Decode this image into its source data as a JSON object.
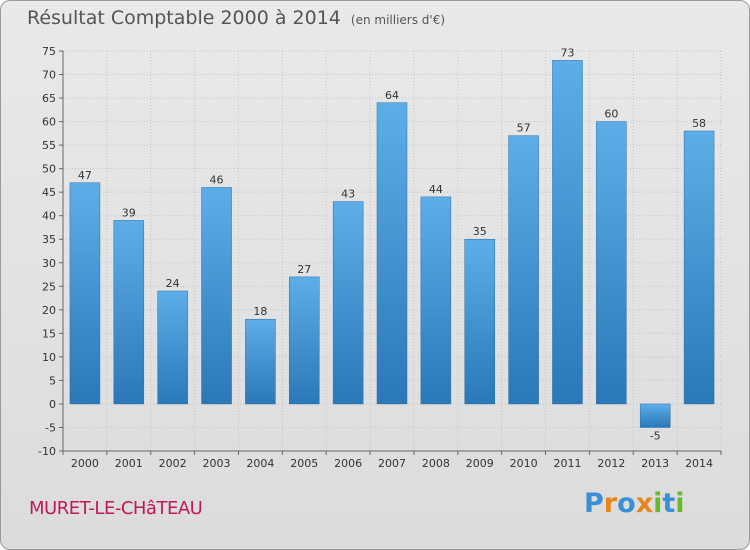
{
  "header": {
    "title": "Résultat Comptable 2000 à 2014",
    "unit": "(en milliers d'€)"
  },
  "footer": {
    "commune": "MURET-LE-CHâTEAU",
    "logo_letters": [
      "P",
      "r",
      "o",
      "x",
      "i",
      "t",
      "i"
    ]
  },
  "colors": {
    "bar_top": "#5daee8",
    "bar_bottom": "#2a78b8",
    "commune": "#c0185b",
    "logo": [
      "#3a8fd6",
      "#e8861a",
      "#3a8fd6",
      "#e8861a",
      "#6ab82e",
      "#3a8fd6",
      "#6ab82e"
    ]
  },
  "chart_data": {
    "type": "bar",
    "title": "Résultat Comptable 2000 à 2014",
    "categories": [
      "2000",
      "2001",
      "2002",
      "2003",
      "2004",
      "2005",
      "2006",
      "2007",
      "2008",
      "2009",
      "2010",
      "2011",
      "2012",
      "2013",
      "2014"
    ],
    "values": [
      47,
      39,
      24,
      46,
      18,
      27,
      43,
      64,
      44,
      35,
      57,
      73,
      60,
      -5,
      58
    ],
    "ylim": [
      -10,
      75
    ],
    "yticks": [
      75,
      70,
      65,
      60,
      55,
      50,
      45,
      40,
      35,
      30,
      25,
      20,
      15,
      10,
      5,
      0,
      -5,
      -10
    ],
    "xlabel": "",
    "ylabel": "",
    "grid": true
  }
}
